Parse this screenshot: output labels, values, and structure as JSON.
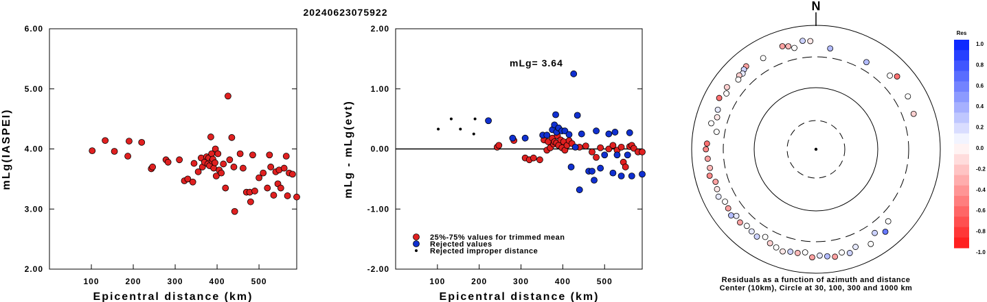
{
  "title": "20240623075922",
  "chart_data": [
    {
      "type": "scatter",
      "id": "left",
      "xlabel": "Epicentral distance (km)",
      "ylabel": "mLg(IASPEI)",
      "xlim": [
        0,
        590
      ],
      "ylim": [
        2.0,
        6.0
      ],
      "xticks": [
        "100",
        "200",
        "300",
        "400",
        "500"
      ],
      "yticks": [
        "2.00",
        "3.00",
        "4.00",
        "5.00",
        "6.00"
      ],
      "series": [
        {
          "color": "#e02020",
          "points": [
            [
              102,
              3.97
            ],
            [
              133,
              4.14
            ],
            [
              155,
              3.96
            ],
            [
              187,
              3.88
            ],
            [
              190,
              4.13
            ],
            [
              220,
              4.11
            ],
            [
              243,
              3.67
            ],
            [
              246,
              3.7
            ],
            [
              278,
              3.82
            ],
            [
              283,
              3.78
            ],
            [
              310,
              3.82
            ],
            [
              322,
              3.47
            ],
            [
              330,
              3.5
            ],
            [
              342,
              3.45
            ],
            [
              345,
              3.76
            ],
            [
              355,
              3.62
            ],
            [
              362,
              3.85
            ],
            [
              365,
              3.7
            ],
            [
              370,
              3.78
            ],
            [
              375,
              3.87
            ],
            [
              378,
              3.75
            ],
            [
              380,
              3.85
            ],
            [
              382,
              3.72
            ],
            [
              385,
              4.2
            ],
            [
              387,
              3.92
            ],
            [
              388,
              3.8
            ],
            [
              390,
              3.83
            ],
            [
              392,
              3.68
            ],
            [
              395,
              3.77
            ],
            [
              396,
              4.0
            ],
            [
              398,
              3.55
            ],
            [
              402,
              3.92
            ],
            [
              405,
              3.65
            ],
            [
              410,
              3.6
            ],
            [
              415,
              3.75
            ],
            [
              420,
              3.35
            ],
            [
              426,
              4.88
            ],
            [
              430,
              3.82
            ],
            [
              435,
              4.19
            ],
            [
              440,
              3.7
            ],
            [
              442,
              2.96
            ],
            [
              455,
              3.92
            ],
            [
              462,
              3.68
            ],
            [
              470,
              3.28
            ],
            [
              478,
              3.28
            ],
            [
              480,
              3.12
            ],
            [
              485,
              3.9
            ],
            [
              490,
              3.3
            ],
            [
              500,
              3.52
            ],
            [
              510,
              3.6
            ],
            [
              520,
              3.35
            ],
            [
              525,
              3.9
            ],
            [
              528,
              3.7
            ],
            [
              535,
              3.23
            ],
            [
              540,
              3.62
            ],
            [
              545,
              3.42
            ],
            [
              548,
              3.65
            ],
            [
              552,
              3.35
            ],
            [
              560,
              3.68
            ],
            [
              565,
              3.88
            ],
            [
              568,
              3.22
            ],
            [
              572,
              3.6
            ],
            [
              580,
              3.58
            ],
            [
              590,
              3.2
            ]
          ]
        }
      ]
    },
    {
      "type": "scatter",
      "id": "right",
      "xlabel": "Epicentral distance (km)",
      "ylabel": "mLg - mLg(evt)",
      "xlim": [
        0,
        590
      ],
      "ylim": [
        -2.0,
        2.0
      ],
      "xticks": [
        "100",
        "200",
        "300",
        "400",
        "500"
      ],
      "yticks": [
        "-2.00",
        "-1.00",
        "0.00",
        "1.00",
        "2.00"
      ],
      "annotation": "mLg= 3.64",
      "legend": {
        "position": "bottom-left",
        "entries": [
          {
            "label": "25%-75% values for trimmed mean",
            "color": "#e02020"
          },
          {
            "label": "Rejected values",
            "color": "#1030d0"
          },
          {
            "label": "Rejected improper distance",
            "color": "#000000"
          }
        ]
      },
      "series": [
        {
          "name": "25%-75% values for trimmed mean",
          "color": "#e02020",
          "points": [
            [
              243,
              0.03
            ],
            [
              247,
              0.06
            ],
            [
              283,
              0.14
            ],
            [
              310,
              -0.15
            ],
            [
              320,
              -0.18
            ],
            [
              330,
              -0.15
            ],
            [
              345,
              -0.18
            ],
            [
              355,
              0.15
            ],
            [
              362,
              -0.02
            ],
            [
              365,
              0.12
            ],
            [
              370,
              0.02
            ],
            [
              375,
              0.18
            ],
            [
              378,
              0.08
            ],
            [
              380,
              0.12
            ],
            [
              385,
              0.1
            ],
            [
              387,
              0.22
            ],
            [
              390,
              0.06
            ],
            [
              395,
              0.15
            ],
            [
              398,
              0.02
            ],
            [
              402,
              0.12
            ],
            [
              405,
              -0.02
            ],
            [
              410,
              0.06
            ],
            [
              415,
              0.14
            ],
            [
              422,
              0.09
            ],
            [
              440,
              0.03
            ],
            [
              455,
              0.05
            ],
            [
              470,
              -0.05
            ],
            [
              480,
              -0.14
            ],
            [
              490,
              0.02
            ],
            [
              510,
              0.0
            ],
            [
              520,
              0.06
            ],
            [
              530,
              -0.02
            ],
            [
              540,
              0.03
            ],
            [
              545,
              -0.22
            ],
            [
              550,
              -0.3
            ],
            [
              560,
              0.04
            ],
            [
              565,
              0.06
            ],
            [
              570,
              0.01
            ],
            [
              580,
              -0.05
            ],
            [
              590,
              -0.05
            ]
          ]
        },
        {
          "name": "Rejected values",
          "color": "#1030d0",
          "points": [
            [
              222,
              0.47
            ],
            [
              280,
              0.18
            ],
            [
              310,
              0.18
            ],
            [
              352,
              0.23
            ],
            [
              362,
              0.23
            ],
            [
              375,
              0.32
            ],
            [
              380,
              0.4
            ],
            [
              383,
              0.57
            ],
            [
              385,
              0.28
            ],
            [
              390,
              0.35
            ],
            [
              398,
              0.3
            ],
            [
              405,
              0.3
            ],
            [
              415,
              0.24
            ],
            [
              420,
              -0.3
            ],
            [
              426,
              1.25
            ],
            [
              430,
              0.03
            ],
            [
              435,
              0.56
            ],
            [
              440,
              -0.68
            ],
            [
              445,
              0.25
            ],
            [
              462,
              -0.37
            ],
            [
              470,
              -0.37
            ],
            [
              475,
              -0.52
            ],
            [
              480,
              0.3
            ],
            [
              490,
              -0.32
            ],
            [
              500,
              -0.1
            ],
            [
              510,
              0.25
            ],
            [
              520,
              -0.4
            ],
            [
              525,
              0.28
            ],
            [
              530,
              -0.1
            ],
            [
              540,
              -0.45
            ],
            [
              555,
              -0.1
            ],
            [
              560,
              0.27
            ],
            [
              565,
              -0.45
            ],
            [
              590,
              -0.42
            ]
          ]
        },
        {
          "name": "Rejected improper distance",
          "color": "#000000",
          "points": [
            [
              102,
              0.33
            ],
            [
              133,
              0.5
            ],
            [
              155,
              0.33
            ],
            [
              187,
              0.25
            ],
            [
              190,
              0.5
            ]
          ]
        }
      ]
    },
    {
      "type": "polar-scatter",
      "id": "polar",
      "north_label": "N",
      "caption_lines": [
        "Residuals as a function of azimuth and distance",
        "Center (10km), Circle at 30, 100, 300 and 1000 km"
      ],
      "rings_km": [
        30,
        100,
        300,
        1000
      ],
      "colorbar": {
        "title": "Res",
        "ticks": [
          "1.0",
          "0.8",
          "0.6",
          "0.4",
          "0.2",
          "0.0",
          "-0.2",
          "-0.4",
          "-0.6",
          "-0.8",
          "-1.0"
        ]
      },
      "points_az_dist_res": [
        [
          -7,
          580,
          0.2
        ],
        [
          -3,
          560,
          -0.1
        ],
        [
          -15,
          525,
          -0.3
        ],
        [
          -12,
          470,
          0.0
        ],
        [
          -18,
          560,
          -0.4
        ],
        [
          -30,
          500,
          0.0
        ],
        [
          -40,
          560,
          -0.4
        ],
        [
          -42,
          540,
          0.2
        ],
        [
          -44,
          500,
          0.1
        ],
        [
          -46,
          520,
          -0.2
        ],
        [
          -48,
          480,
          0.0
        ],
        [
          -55,
          560,
          -0.2
        ],
        [
          -58,
          500,
          0.0
        ],
        [
          -62,
          580,
          -0.6
        ],
        [
          -68,
          505,
          0.1
        ],
        [
          -72,
          470,
          -0.1
        ],
        [
          -76,
          545,
          0.0
        ],
        [
          -80,
          420,
          0.0
        ],
        [
          -87,
          570,
          -0.6
        ],
        [
          -90,
          590,
          -0.5
        ],
        [
          -95,
          560,
          -0.4
        ],
        [
          -100,
          540,
          -0.3
        ],
        [
          -104,
          580,
          -0.5
        ],
        [
          -108,
          500,
          -0.4
        ],
        [
          -112,
          520,
          -0.1
        ],
        [
          -116,
          555,
          0.1
        ],
        [
          -120,
          490,
          0.0
        ],
        [
          -124,
          505,
          -0.4
        ],
        [
          -128,
          540,
          0.3
        ],
        [
          -130,
          470,
          0.1
        ],
        [
          -134,
          500,
          -0.4
        ],
        [
          -138,
          460,
          0.0
        ],
        [
          -142,
          480,
          0.1
        ],
        [
          -146,
          500,
          0.2
        ],
        [
          -150,
          430,
          0.0
        ],
        [
          -154,
          485,
          -0.2
        ],
        [
          -158,
          510,
          0.0
        ],
        [
          -162,
          540,
          -0.1
        ],
        [
          -166,
          505,
          0.2
        ],
        [
          -170,
          500,
          -0.3
        ],
        [
          -174,
          470,
          0.0
        ],
        [
          -178,
          555,
          -0.4
        ],
        [
          178,
          520,
          0.1
        ],
        [
          174,
          545,
          0.3
        ],
        [
          170,
          575,
          -0.4
        ],
        [
          166,
          520,
          0.0
        ],
        [
          162,
          575,
          0.2
        ],
        [
          158,
          500,
          0.1
        ],
        [
          150,
          580,
          0.0
        ],
        [
          145,
          445,
          0.2
        ],
        [
          140,
          545,
          0.6
        ],
        [
          135,
          440,
          0.0
        ],
        [
          30,
          420,
          0.3
        ],
        [
          45,
          480,
          0.0
        ],
        [
          48,
          570,
          -0.6
        ],
        [
          60,
          510,
          0.0
        ],
        [
          70,
          470,
          -0.2
        ],
        [
          8,
          440,
          0.3
        ]
      ]
    }
  ]
}
